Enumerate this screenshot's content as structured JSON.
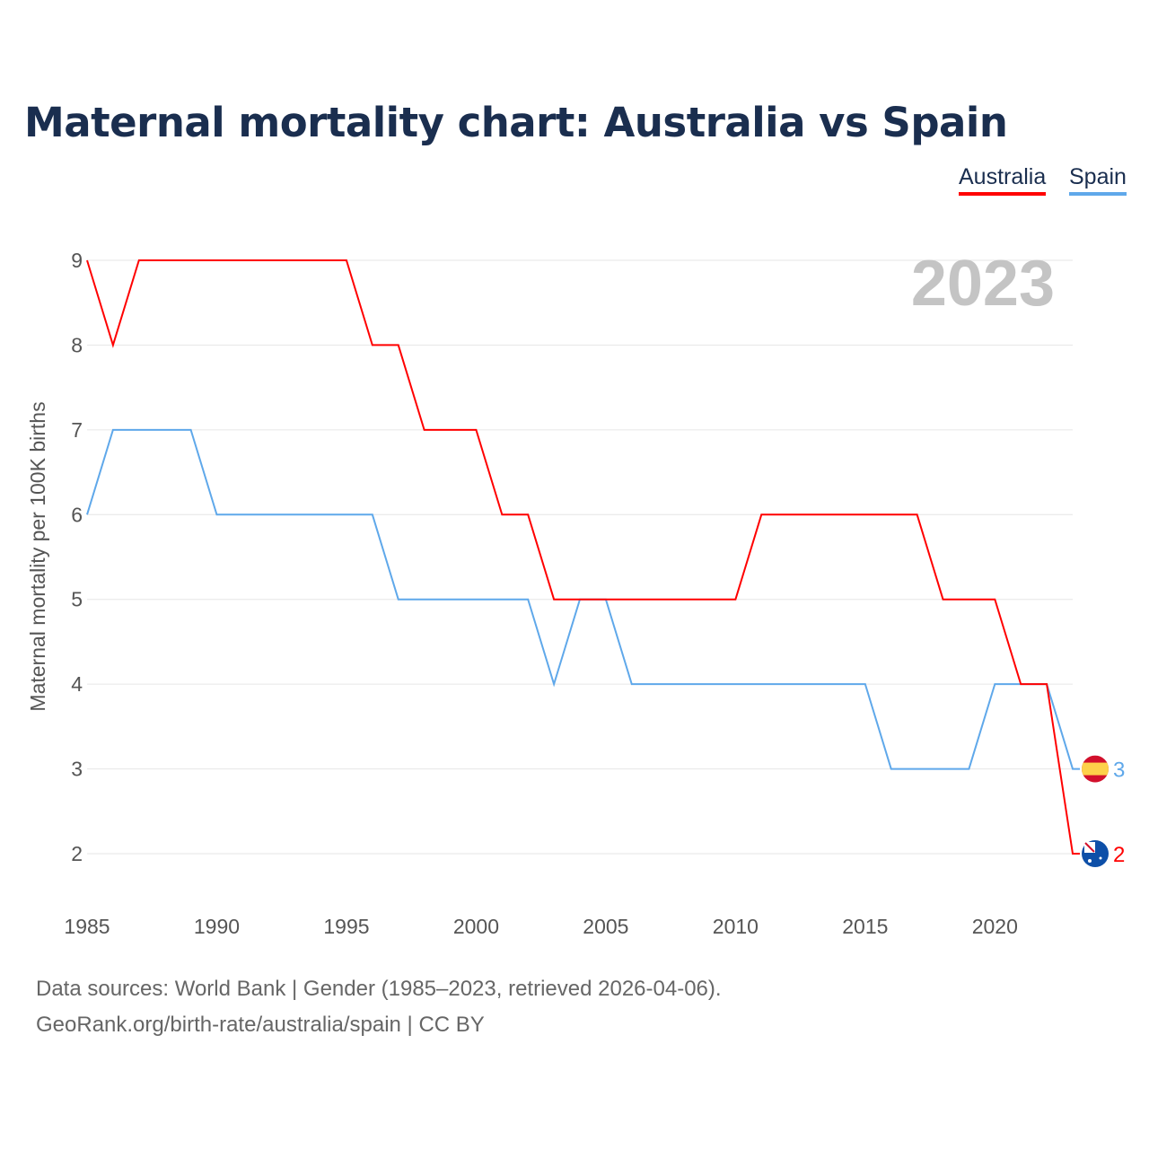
{
  "chart_data": {
    "type": "line",
    "title": "Maternal mortality chart: Australia vs Spain",
    "ylabel": "Maternal mortality per 100K births",
    "xlabel": "",
    "year_label": "2023",
    "x": [
      1985,
      1986,
      1987,
      1988,
      1989,
      1990,
      1991,
      1992,
      1993,
      1994,
      1995,
      1996,
      1997,
      1998,
      1999,
      2000,
      2001,
      2002,
      2003,
      2004,
      2005,
      2006,
      2007,
      2008,
      2009,
      2010,
      2011,
      2012,
      2013,
      2014,
      2015,
      2016,
      2017,
      2018,
      2019,
      2020,
      2021,
      2022,
      2023
    ],
    "xlim": [
      1985,
      2023
    ],
    "ylim": [
      2,
      9
    ],
    "xticks": [
      1985,
      1990,
      1995,
      2000,
      2005,
      2010,
      2015,
      2020
    ],
    "yticks": [
      2,
      3,
      4,
      5,
      6,
      7,
      8,
      9
    ],
    "grid": true,
    "legend_position": "top-right",
    "series": [
      {
        "name": "Australia",
        "color": "#ff0000",
        "end_label": "2",
        "values": [
          9,
          8,
          9,
          9,
          9,
          9,
          9,
          9,
          9,
          9,
          9,
          8,
          8,
          7,
          7,
          7,
          6,
          6,
          5,
          5,
          5,
          5,
          5,
          5,
          5,
          5,
          6,
          6,
          6,
          6,
          6,
          6,
          6,
          5,
          5,
          5,
          4,
          4,
          2
        ]
      },
      {
        "name": "Spain",
        "color": "#5fa8ea",
        "end_label": "3",
        "values": [
          6,
          7,
          7,
          7,
          7,
          6,
          6,
          6,
          6,
          6,
          6,
          6,
          5,
          5,
          5,
          5,
          5,
          5,
          4,
          5,
          5,
          4,
          4,
          4,
          4,
          4,
          4,
          4,
          4,
          4,
          4,
          3,
          3,
          3,
          3,
          4,
          4,
          4,
          3
        ]
      }
    ]
  },
  "footer": {
    "line1": "Data sources: World Bank | Gender (1985–2023, retrieved 2026-04-06).",
    "line2": "GeoRank.org/birth-rate/australia/spain | CC BY"
  }
}
